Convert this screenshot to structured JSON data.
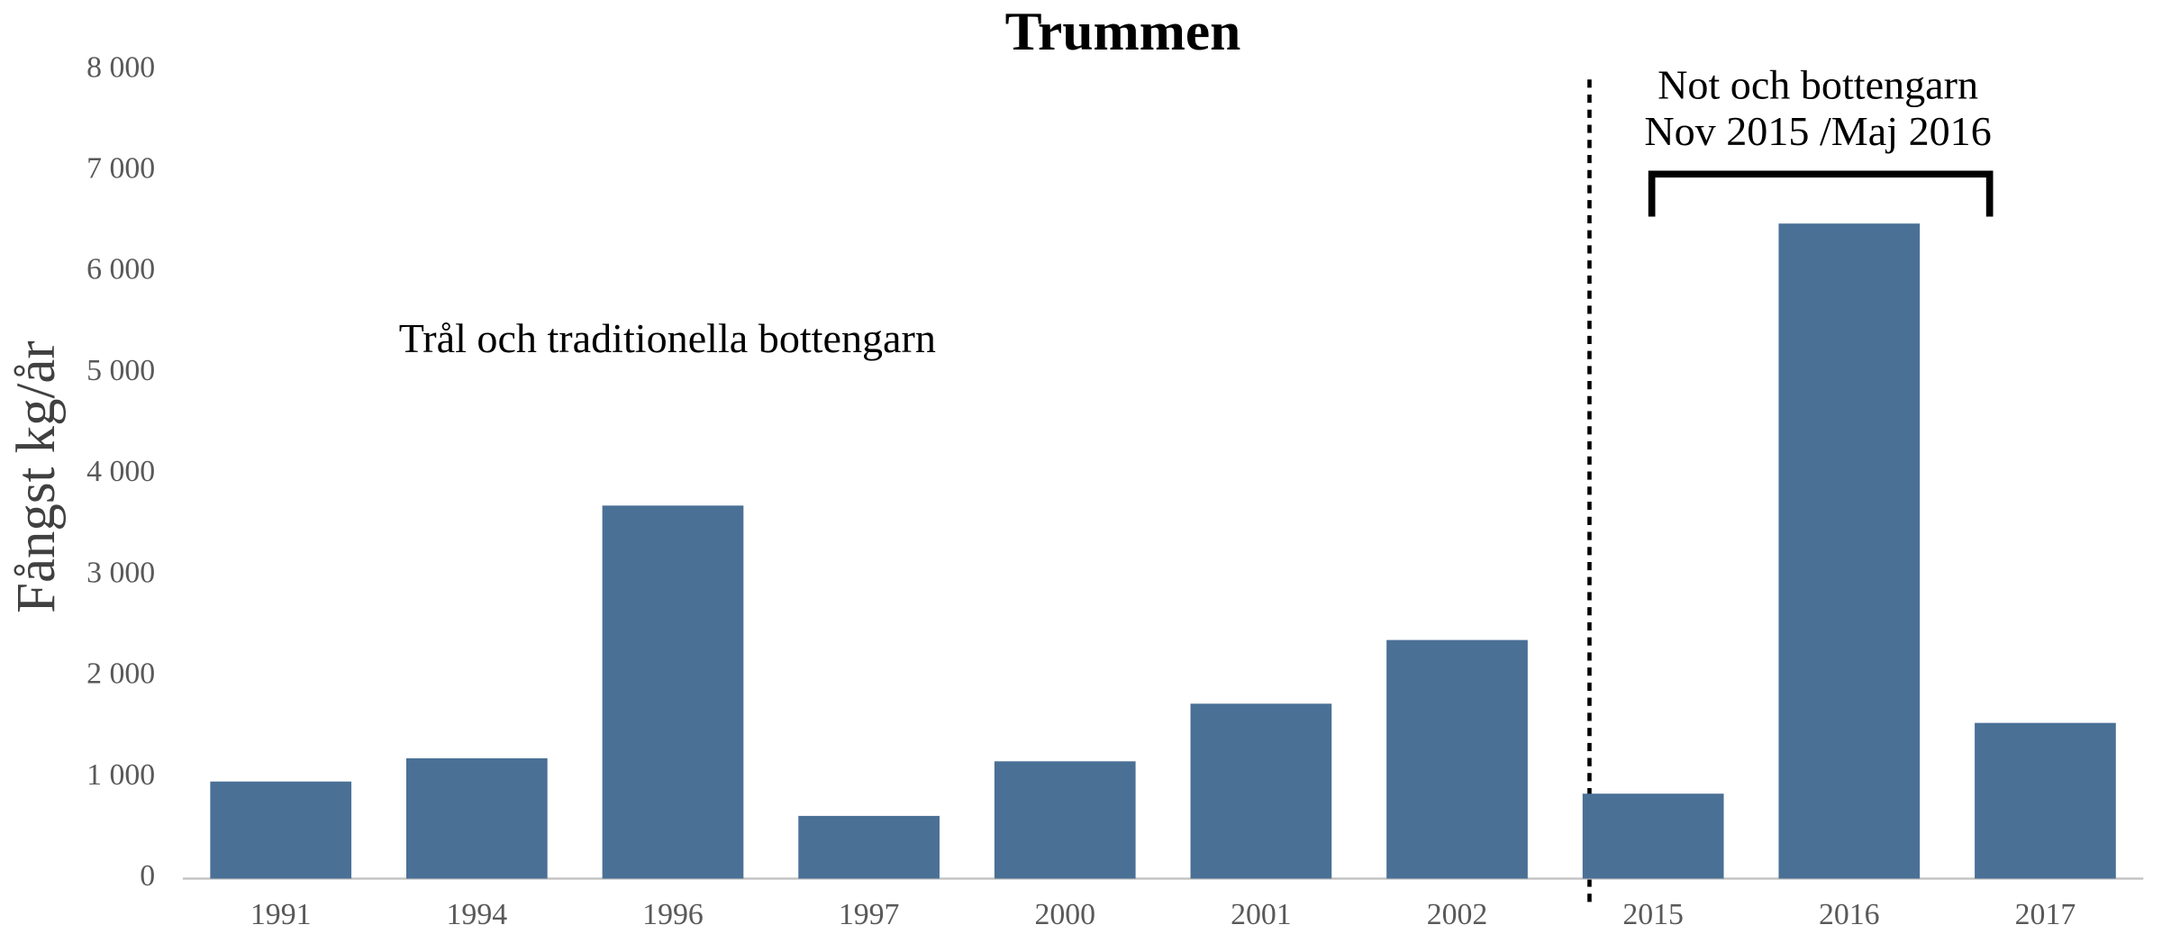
{
  "chart_data": {
    "type": "bar",
    "title": "Trummen",
    "y_label": "Fångst kg/år",
    "annotations": [
      "Trål och traditionella bottengarn",
      "Not och bottengarn",
      "Nov 2015 /Maj 2016"
    ],
    "categories": [
      "1991",
      "1994",
      "1996",
      "1997",
      "2000",
      "2001",
      "2002",
      "2015",
      "2016",
      "2017"
    ],
    "values": [
      960,
      1190,
      3690,
      620,
      1160,
      1730,
      2360,
      840,
      6480,
      1540
    ],
    "color": "#4a7096",
    "ylim": [
      0,
      8000
    ],
    "yticks": [
      0,
      {
        "value": 1000,
        "label": "1 000"
      },
      {
        "value": 2000,
        "label": "2 000"
      },
      {
        "value": 3000,
        "label": "3 000"
      },
      {
        "value": 4000,
        "label": "4 000"
      },
      {
        "value": 5000,
        "label": "5 000"
      },
      {
        "value": 6000,
        "label": "6 000"
      },
      {
        "value": 7000,
        "label": "7 000"
      },
      {
        "value": 8000,
        "label": "8 000"
      }
    ],
    "grid": false
  }
}
